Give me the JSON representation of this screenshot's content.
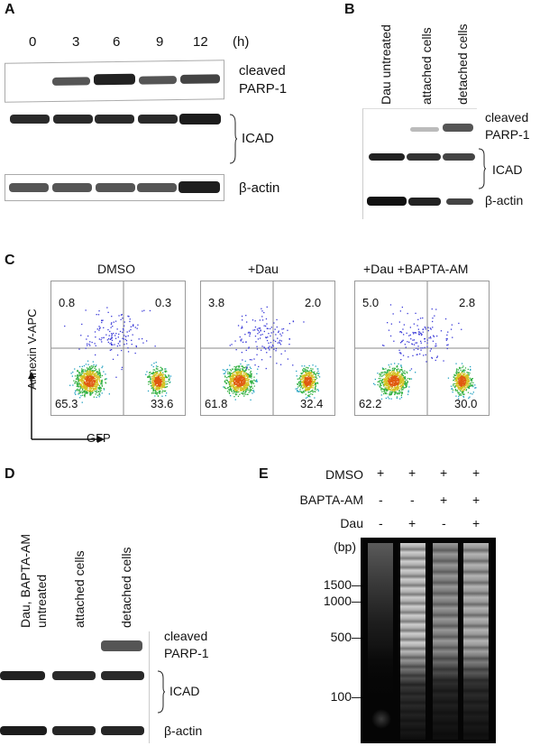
{
  "panelA": {
    "label": "A",
    "timepoints": [
      "0",
      "3",
      "6",
      "9",
      "12"
    ],
    "unit": "(h)",
    "bands": {
      "cleaved_parp_line1": "cleaved",
      "cleaved_parp_line2": "PARP-1",
      "icad": "ICAD",
      "actin": "β-actin"
    }
  },
  "panelB": {
    "label": "B",
    "lanes": [
      "Dau untreated",
      "attached cells",
      "detached cells"
    ],
    "bands": {
      "cleaved_parp_line1": "cleaved",
      "cleaved_parp_line2": "PARP-1",
      "icad": "ICAD",
      "actin": "β-actin"
    }
  },
  "panelC": {
    "label": "C",
    "y_axis": "Annexin V-APC",
    "x_axis": "GFP",
    "plots": [
      {
        "title": "DMSO",
        "ul": "0.8",
        "ur": "0.3",
        "ll": "65.3",
        "lr": "33.6"
      },
      {
        "title": "+Dau",
        "ul": "3.8",
        "ur": "2.0",
        "ll": "61.8",
        "lr": "32.4"
      },
      {
        "title": "+Dau +BAPTA-AM",
        "ul": "5.0",
        "ur": "2.8",
        "ll": "62.2",
        "lr": "30.0"
      }
    ]
  },
  "panelD": {
    "label": "D",
    "lanes": [
      "Dau, BAPTA-AM untreated",
      "attached cells",
      "detached cells"
    ],
    "lane0_line1": "Dau, BAPTA-AM",
    "lane0_line2": "untreated",
    "bands": {
      "cleaved_parp_line1": "cleaved",
      "cleaved_parp_line2": "PARP-1",
      "icad": "ICAD",
      "actin": "β-actin"
    }
  },
  "panelE": {
    "label": "E",
    "rows": [
      {
        "name": "DMSO",
        "signs": [
          "+",
          "+",
          "+",
          "+"
        ]
      },
      {
        "name": "BAPTA-AM",
        "signs": [
          "-",
          "-",
          "+",
          "+"
        ]
      },
      {
        "name": "Dau",
        "signs": [
          "-",
          "+",
          "-",
          "+"
        ]
      }
    ],
    "bp_unit": "(bp)",
    "markers": [
      "1500",
      "1000",
      "500",
      "100"
    ]
  }
}
